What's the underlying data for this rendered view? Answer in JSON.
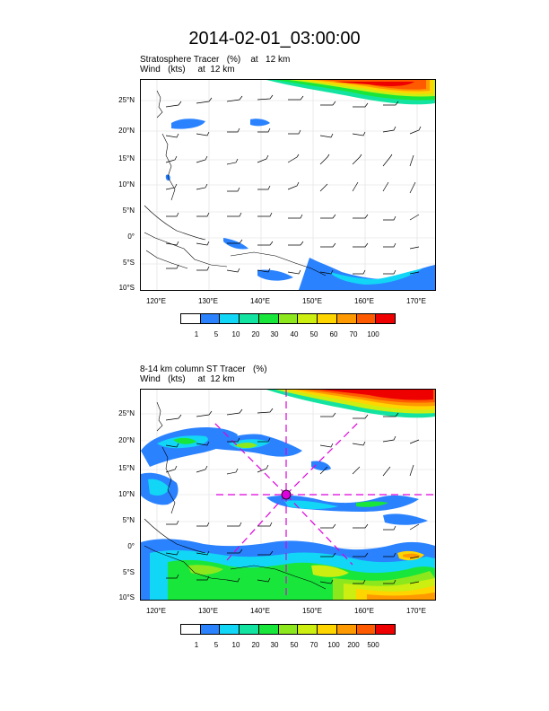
{
  "main_title": "2014-02-01_03:00:00",
  "panels": [
    {
      "title_line1": "Stratosphere Tracer   (%)    at   12 km",
      "title_line2": "Wind   (kts)     at  12 km",
      "colorbar_labels": [
        "1",
        "5",
        "10",
        "20",
        "30",
        "40",
        "50",
        "60",
        "70",
        "100"
      ],
      "colorbar_colors": [
        "#ffffff",
        "#2a82ff",
        "#12d6f5",
        "#13e3a0",
        "#18e63b",
        "#8ce81c",
        "#ccee11",
        "#ffd500",
        "#ff9900",
        "#ff5a00",
        "#ee0000"
      ]
    },
    {
      "title_line1": "8-14 km column ST Tracer   (%)",
      "title_line2": "Wind   (kts)     at  12 km",
      "colorbar_labels": [
        "1",
        "5",
        "10",
        "20",
        "30",
        "50",
        "70",
        "100",
        "200",
        "500"
      ],
      "colorbar_colors": [
        "#ffffff",
        "#2a82ff",
        "#12d6f5",
        "#13e3a0",
        "#18e63b",
        "#8ce81c",
        "#ccee11",
        "#ffd500",
        "#ff9900",
        "#ff5a00",
        "#ee0000"
      ]
    }
  ],
  "map_axes": {
    "lat_labels": [
      "25°N",
      "20°N",
      "15°N",
      "10°N",
      "5°N",
      "0°",
      "5°S",
      "10°S"
    ],
    "lat_values": [
      25,
      20,
      15,
      10,
      5,
      0,
      -5,
      -10
    ],
    "lon_labels": [
      "120°E",
      "130°E",
      "140°E",
      "150°E",
      "160°E",
      "170°E"
    ],
    "lon_values": [
      120,
      130,
      140,
      150,
      160,
      170
    ],
    "lon_range": [
      116,
      173
    ],
    "lat_range": [
      -10.3,
      28.5
    ]
  }
}
